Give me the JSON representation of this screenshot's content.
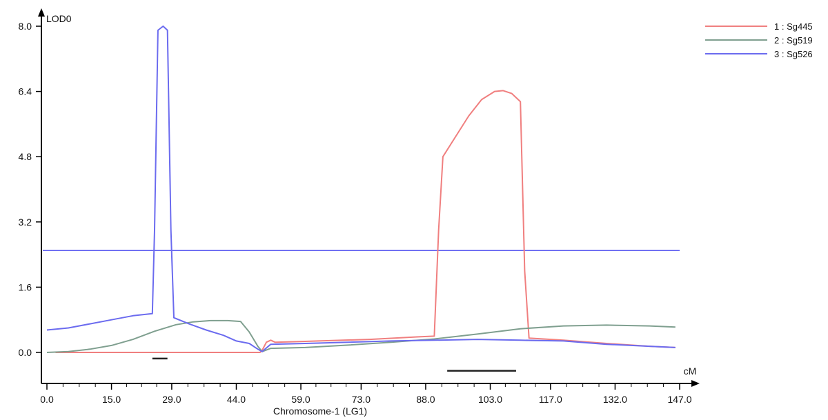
{
  "chart_data": {
    "type": "line",
    "xlabel": "Chromosome-1 (LG1)",
    "ylabel": "LOD0",
    "x_unit": "cM",
    "xlim": [
      0,
      147
    ],
    "ylim": [
      0,
      8
    ],
    "x_ticks": [
      "0.0",
      "15.0",
      "29.0",
      "44.0",
      "59.0",
      "73.0",
      "88.0",
      "103.0",
      "117.0",
      "132.0",
      "147.0"
    ],
    "y_ticks": [
      "0.0",
      "1.6",
      "3.2",
      "4.8",
      "6.4",
      "8.0"
    ],
    "threshold": {
      "y": 2.5,
      "color": "#5b5bf0"
    },
    "support_intervals": [
      {
        "x": [
          24.5,
          28.0
        ],
        "y": -0.15
      },
      {
        "x": [
          93.0,
          109.0
        ],
        "y": -0.45
      }
    ],
    "series": [
      {
        "name": "1 : Sg445",
        "color": "#f07f7f",
        "points": [
          [
            2,
            0
          ],
          [
            20,
            0
          ],
          [
            40,
            0
          ],
          [
            49.5,
            0
          ],
          [
            50,
            0.05
          ],
          [
            51,
            0.25
          ],
          [
            52,
            0.3
          ],
          [
            53,
            0.25
          ],
          [
            60,
            0.27
          ],
          [
            75,
            0.32
          ],
          [
            86,
            0.38
          ],
          [
            90,
            0.4
          ],
          [
            91,
            3.0
          ],
          [
            92,
            4.8
          ],
          [
            95,
            5.3
          ],
          [
            98,
            5.8
          ],
          [
            101,
            6.2
          ],
          [
            104,
            6.4
          ],
          [
            106,
            6.42
          ],
          [
            108,
            6.35
          ],
          [
            110,
            6.15
          ],
          [
            111,
            2.0
          ],
          [
            112,
            0.35
          ],
          [
            120,
            0.3
          ],
          [
            130,
            0.22
          ],
          [
            140,
            0.15
          ],
          [
            146,
            0.12
          ]
        ]
      },
      {
        "name": "2 : Sg519",
        "color": "#7f9f8f",
        "points": [
          [
            0,
            0
          ],
          [
            5,
            0.02
          ],
          [
            10,
            0.08
          ],
          [
            15,
            0.17
          ],
          [
            20,
            0.32
          ],
          [
            25,
            0.52
          ],
          [
            30,
            0.68
          ],
          [
            34,
            0.75
          ],
          [
            38,
            0.78
          ],
          [
            42,
            0.78
          ],
          [
            45,
            0.76
          ],
          [
            47,
            0.5
          ],
          [
            49,
            0.15
          ],
          [
            50,
            0.02
          ],
          [
            52,
            0.1
          ],
          [
            60,
            0.12
          ],
          [
            70,
            0.18
          ],
          [
            80,
            0.25
          ],
          [
            90,
            0.33
          ],
          [
            100,
            0.45
          ],
          [
            110,
            0.58
          ],
          [
            120,
            0.65
          ],
          [
            130,
            0.67
          ],
          [
            140,
            0.65
          ],
          [
            146,
            0.62
          ]
        ]
      },
      {
        "name": "3 : Sg526",
        "color": "#6b6bef",
        "points": [
          [
            0,
            0.55
          ],
          [
            5,
            0.6
          ],
          [
            10,
            0.7
          ],
          [
            15,
            0.8
          ],
          [
            20,
            0.9
          ],
          [
            24.5,
            0.95
          ],
          [
            25,
            3.0
          ],
          [
            25.8,
            7.9
          ],
          [
            27,
            8.0
          ],
          [
            28,
            7.9
          ],
          [
            28.8,
            3.0
          ],
          [
            29.5,
            0.85
          ],
          [
            33,
            0.7
          ],
          [
            37,
            0.55
          ],
          [
            41,
            0.42
          ],
          [
            44,
            0.28
          ],
          [
            47,
            0.22
          ],
          [
            49,
            0.08
          ],
          [
            50,
            0.02
          ],
          [
            52,
            0.2
          ],
          [
            60,
            0.22
          ],
          [
            70,
            0.25
          ],
          [
            80,
            0.28
          ],
          [
            90,
            0.3
          ],
          [
            100,
            0.32
          ],
          [
            110,
            0.3
          ],
          [
            120,
            0.28
          ],
          [
            130,
            0.2
          ],
          [
            140,
            0.15
          ],
          [
            146,
            0.12
          ]
        ]
      }
    ],
    "legend_position": "top-right"
  }
}
